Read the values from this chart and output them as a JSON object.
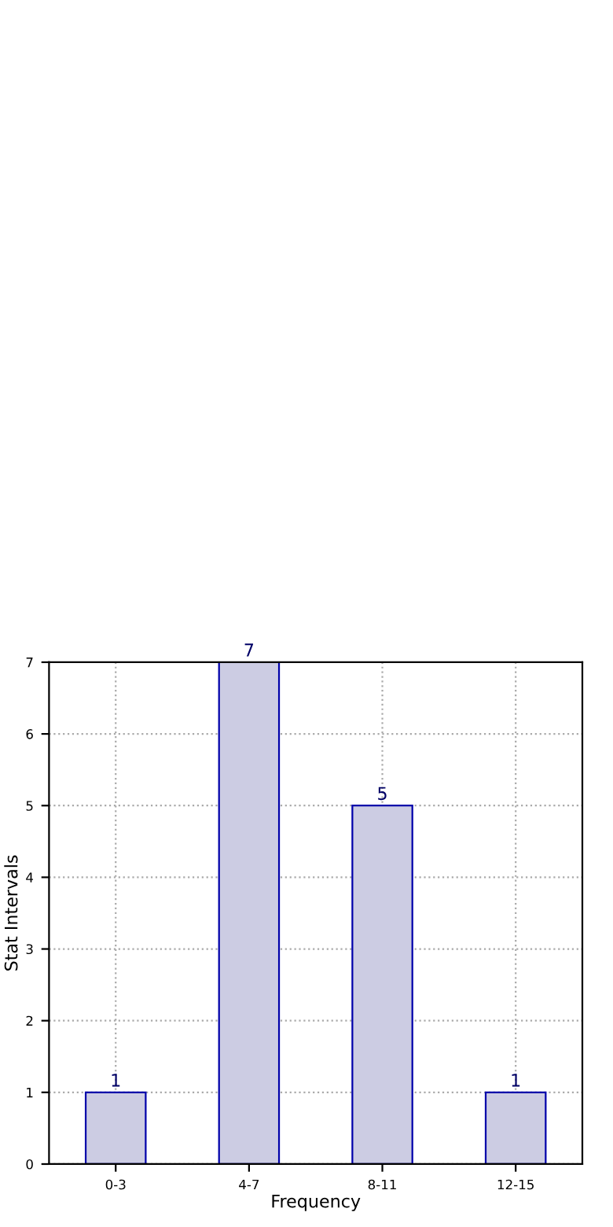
{
  "chart_data": {
    "type": "bar",
    "xlabel": "Frequency",
    "ylabel": "Stat Intervals",
    "categories": [
      "0-3",
      "4-7",
      "8-11",
      "12-15"
    ],
    "series": [
      {
        "color": "#cccce3",
        "values": [
          1,
          7,
          5,
          1
        ]
      }
    ],
    "ylim": [
      0,
      7
    ],
    "yticks": [
      0,
      1,
      2,
      3,
      4,
      5,
      6,
      7
    ],
    "grid": true,
    "line_style": "dotted",
    "data_labels": true
  }
}
